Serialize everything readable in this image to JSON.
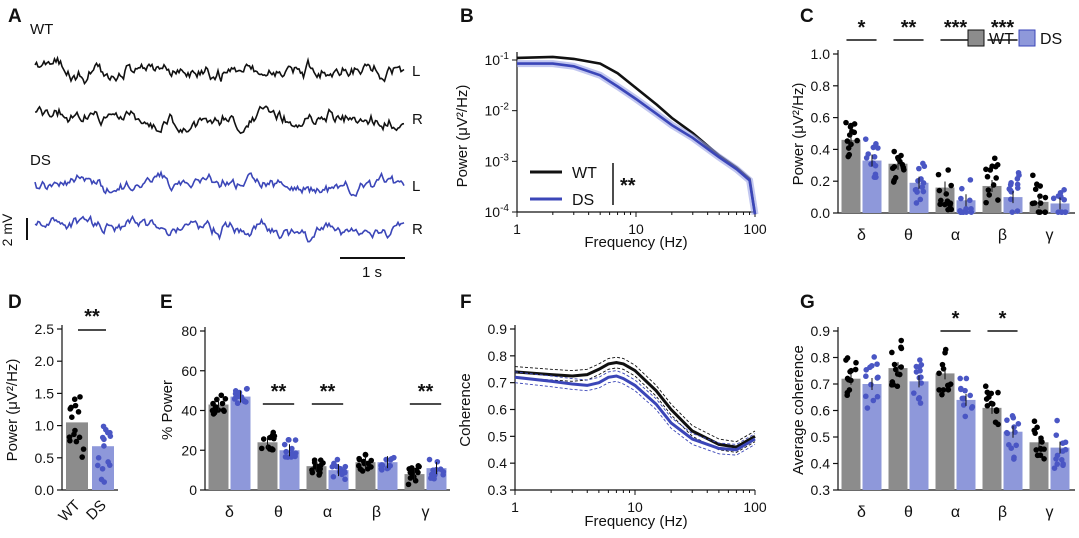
{
  "colors": {
    "wt": "#111111",
    "ds": "#3b46b8",
    "wt_bar": "#8c8c8c",
    "ds_bar": "#8e98da",
    "wt_dot": "#000000",
    "ds_dot": "#4a56c4"
  },
  "panel_labels": [
    "A",
    "B",
    "C",
    "D",
    "E",
    "F",
    "G"
  ],
  "panel_a": {
    "group_wt": "WT",
    "group_ds": "DS",
    "ch_l": "L",
    "ch_r": "R",
    "scale_v": "2 mV",
    "scale_t": "1 s"
  },
  "chart_data": [
    {
      "panel": "B",
      "type": "line",
      "title": "",
      "xlabel": "Frequency (Hz)",
      "ylabel": "Power (μV²/Hz)",
      "xscale": "log",
      "yscale": "log",
      "xlim": [
        1,
        100
      ],
      "ylim": [
        0.0001,
        0.2
      ],
      "xticks": [
        "1",
        "10",
        "100"
      ],
      "yticks": [
        "10-1",
        "10-2",
        "10-3",
        "10-4"
      ],
      "legend": [
        "WT",
        "DS"
      ],
      "sig": "**",
      "series": [
        {
          "name": "WT",
          "x": [
            1,
            2,
            3,
            5,
            7,
            10,
            15,
            20,
            30,
            50,
            70,
            90,
            100
          ],
          "y": [
            0.11,
            0.115,
            0.105,
            0.085,
            0.055,
            0.028,
            0.013,
            0.0072,
            0.0036,
            0.0013,
            0.00075,
            0.00045,
            9e-05
          ]
        },
        {
          "name": "DS",
          "x": [
            1,
            2,
            3,
            5,
            7,
            10,
            15,
            20,
            30,
            50,
            70,
            90,
            100
          ],
          "y": [
            0.085,
            0.085,
            0.075,
            0.05,
            0.03,
            0.017,
            0.0085,
            0.0052,
            0.0029,
            0.0012,
            0.0007,
            0.00042,
            9e-05
          ]
        }
      ]
    },
    {
      "panel": "C",
      "type": "bar",
      "ylabel": "Power (μV²/Hz)",
      "ylim": [
        0,
        1.0
      ],
      "yticks": [
        "0.0",
        "0.2",
        "0.4",
        "0.6",
        "0.8",
        "1.0"
      ],
      "categories": [
        "δ",
        "θ",
        "α",
        "β",
        "γ"
      ],
      "legend": [
        "WT",
        "DS"
      ],
      "series": [
        {
          "name": "WT",
          "values": [
            0.46,
            0.31,
            0.16,
            0.17,
            0.07
          ]
        },
        {
          "name": "DS",
          "values": [
            0.33,
            0.19,
            0.08,
            0.1,
            0.06
          ]
        }
      ],
      "sig": [
        "*",
        "**",
        "***",
        "***",
        ""
      ]
    },
    {
      "panel": "D",
      "type": "bar",
      "ylabel": "Power (μV²/Hz)",
      "ylim": [
        0,
        2.5
      ],
      "yticks": [
        "0.0",
        "0.5",
        "1.0",
        "1.5",
        "2.0",
        "2.5"
      ],
      "categories": [
        "WT",
        "DS"
      ],
      "values": [
        1.05,
        0.68
      ],
      "sig": "**"
    },
    {
      "panel": "E",
      "type": "bar",
      "ylabel": "% Power",
      "ylim": [
        0,
        80
      ],
      "yticks": [
        "0",
        "20",
        "40",
        "60",
        "80"
      ],
      "categories": [
        "δ",
        "θ",
        "α",
        "β",
        "γ"
      ],
      "series": [
        {
          "name": "WT",
          "values": [
            43,
            24,
            12,
            14,
            8
          ]
        },
        {
          "name": "DS",
          "values": [
            47,
            20,
            10,
            14,
            11
          ]
        }
      ],
      "sig": [
        "",
        "**",
        "**",
        "",
        "**"
      ]
    },
    {
      "panel": "F",
      "type": "line",
      "xlabel": "Frequency (Hz)",
      "ylabel": "Coherence",
      "xscale": "log",
      "xlim": [
        1,
        100
      ],
      "ylim": [
        0.3,
        0.9
      ],
      "xticks": [
        "1",
        "10",
        "100"
      ],
      "yticks": [
        "0.3",
        "0.4",
        "0.5",
        "0.6",
        "0.7",
        "0.8",
        "0.9"
      ],
      "series": [
        {
          "name": "WT",
          "x": [
            1,
            2,
            3,
            4,
            5,
            6,
            7,
            8,
            10,
            15,
            20,
            30,
            50,
            70,
            100
          ],
          "y": [
            0.74,
            0.73,
            0.725,
            0.73,
            0.75,
            0.77,
            0.775,
            0.77,
            0.745,
            0.67,
            0.6,
            0.52,
            0.47,
            0.46,
            0.5
          ]
        },
        {
          "name": "DS",
          "x": [
            1,
            2,
            3,
            4,
            5,
            6,
            7,
            8,
            10,
            15,
            20,
            30,
            50,
            70,
            100
          ],
          "y": [
            0.72,
            0.705,
            0.695,
            0.69,
            0.7,
            0.72,
            0.725,
            0.715,
            0.69,
            0.62,
            0.55,
            0.49,
            0.455,
            0.45,
            0.49
          ]
        }
      ]
    },
    {
      "panel": "G",
      "type": "bar",
      "ylabel": "Average coherence",
      "ylim": [
        0.3,
        0.9
      ],
      "yticks": [
        "0.3",
        "0.4",
        "0.5",
        "0.6",
        "0.7",
        "0.8",
        "0.9"
      ],
      "categories": [
        "δ",
        "θ",
        "α",
        "β",
        "γ"
      ],
      "series": [
        {
          "name": "WT",
          "values": [
            0.72,
            0.76,
            0.74,
            0.61,
            0.48
          ]
        },
        {
          "name": "DS",
          "values": [
            0.7,
            0.71,
            0.64,
            0.52,
            0.46
          ]
        }
      ],
      "sig": [
        "",
        "",
        "*",
        "*",
        ""
      ]
    }
  ]
}
